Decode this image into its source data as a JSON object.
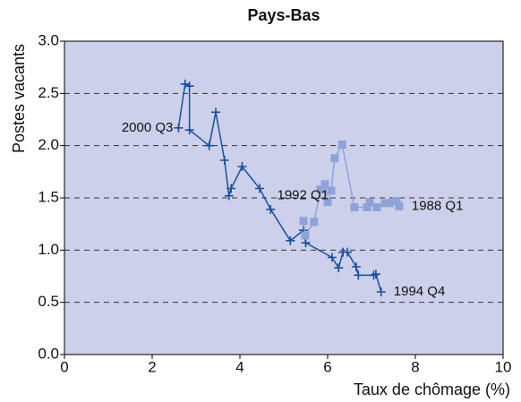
{
  "chart_data": {
    "type": "line",
    "title": "Pays-Bas",
    "xlabel": "Taux de chômage (%)",
    "ylabel": "Postes vacants",
    "xlim": [
      0,
      10
    ],
    "ylim": [
      0,
      3
    ],
    "xticks": [
      0,
      2,
      4,
      6,
      8,
      10
    ],
    "yticks": [
      {
        "value": 0,
        "label": "0.0"
      },
      {
        "value": 0.5,
        "label": "0.5"
      },
      {
        "value": 1,
        "label": "1.0"
      },
      {
        "value": 1.5,
        "label": "1.5"
      },
      {
        "value": 2,
        "label": "2.0"
      },
      {
        "value": 2.5,
        "label": "2.5"
      },
      {
        "value": 3,
        "label": "3.0"
      }
    ],
    "grid": true,
    "background": "#cdd0ea",
    "series": [
      {
        "color": "#1a4f9c",
        "marker": "plus",
        "start_label": "1994 Q4",
        "end_label": "2000 Q3",
        "x": [
          7.22,
          7.1,
          7.05,
          6.7,
          6.65,
          6.45,
          6.35,
          6.25,
          6.1,
          5.5,
          5.45,
          5.15,
          4.7,
          4.45,
          4.05,
          3.8,
          3.75,
          3.65,
          3.45,
          3.3,
          2.85,
          2.85,
          2.75,
          2.6
        ],
        "values": [
          0.6,
          0.77,
          0.76,
          0.76,
          0.84,
          0.98,
          0.98,
          0.83,
          0.93,
          1.07,
          1.19,
          1.09,
          1.39,
          1.59,
          1.8,
          1.59,
          1.52,
          1.86,
          2.32,
          2.0,
          2.15,
          2.57,
          2.59,
          2.17
        ]
      },
      {
        "color": "#8fa2d8",
        "marker": "square",
        "start_label": "1988 Q1",
        "end_label": "1992 Q1",
        "x": [
          7.63,
          7.57,
          7.41,
          7.31,
          7.12,
          6.96,
          6.9,
          6.61,
          6.33,
          6.16,
          6.08,
          6.0,
          5.94,
          5.84,
          5.69,
          5.49,
          5.45
        ],
        "values": [
          1.42,
          1.47,
          1.45,
          1.45,
          1.41,
          1.46,
          1.41,
          1.41,
          2.01,
          1.88,
          1.57,
          1.46,
          1.63,
          1.58,
          1.27,
          1.14,
          1.28
        ]
      }
    ]
  }
}
